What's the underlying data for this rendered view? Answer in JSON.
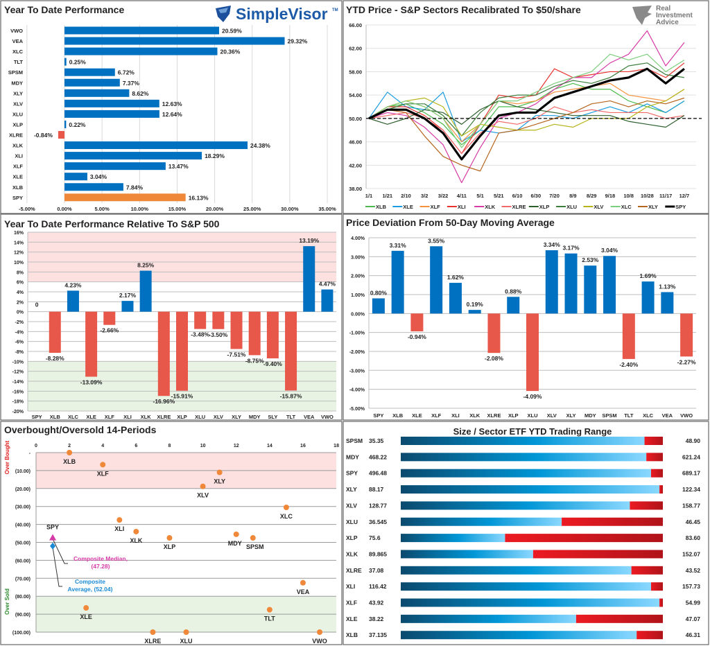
{
  "logos": {
    "simplevisor": "SimpleVisor",
    "simplevisor_tm": "TM",
    "ria": [
      "Real",
      "Investment",
      "Advice"
    ]
  },
  "colors": {
    "positive": "#0070c0",
    "negative": "#e8584a",
    "highlight": "#f0883a",
    "overbought_band": "#fde1e1",
    "oversold_band": "#e8f3e4",
    "median": "#d63aa6",
    "average": "#1a8ad4"
  },
  "chart_data": [
    {
      "type": "bar",
      "orientation": "horizontal",
      "title": "Year To Date Performance",
      "categories": [
        "VWO",
        "VEA",
        "XLC",
        "TLT",
        "SPSM",
        "MDY",
        "XLY",
        "XLV",
        "XLU",
        "XLP",
        "XLRE",
        "XLK",
        "XLI",
        "XLF",
        "XLE",
        "XLB",
        "SPY"
      ],
      "values": [
        20.59,
        29.32,
        20.36,
        0.25,
        6.72,
        7.37,
        8.62,
        12.63,
        12.64,
        0.22,
        -0.84,
        24.38,
        18.29,
        13.47,
        3.04,
        7.84,
        16.13
      ],
      "labels": [
        "20.59%",
        "29.32%",
        "20.36%",
        "0.25%",
        "6.72%",
        "7.37%",
        "8.62%",
        "12.63%",
        "12.64%",
        "0.22%",
        "-0.84%",
        "24.38%",
        "18.29%",
        "13.47%",
        "3.04%",
        "7.84%",
        "16.13%"
      ],
      "highlight": "SPY",
      "xlim": [
        -5,
        35
      ],
      "xticks": [
        "-5.00%",
        "0.00%",
        "5.00%",
        "10.00%",
        "15.00%",
        "20.00%",
        "25.00%",
        "30.00%",
        "35.00%"
      ],
      "grid": true
    },
    {
      "type": "line",
      "title": "YTD Price - S&P Sectors Recalibrated To $50/share",
      "x": [
        "1/1",
        "1/21",
        "2/10",
        "3/2",
        "3/22",
        "4/11",
        "5/1",
        "5/21",
        "6/10",
        "6/30",
        "7/20",
        "8/9",
        "8/29",
        "9/18",
        "10/8",
        "10/28",
        "11/17",
        "12/7"
      ],
      "ylim": [
        38,
        66
      ],
      "yticks": [
        "66.00",
        "62.00",
        "58.00",
        "54.00",
        "50.00",
        "46.00",
        "42.00",
        "38.00"
      ],
      "reference_line": 50,
      "legend": "bottom",
      "series": [
        {
          "name": "XLB",
          "color": "#4cbb4c",
          "values": [
            50,
            52,
            52.5,
            51,
            49,
            45.5,
            48,
            52,
            52,
            53,
            55,
            56,
            55,
            55,
            53,
            52,
            51,
            53
          ]
        },
        {
          "name": "XLE",
          "color": "#1a9be0",
          "values": [
            50,
            54.5,
            52,
            51.5,
            54.5,
            46,
            48,
            47.5,
            48,
            50.5,
            50.5,
            50,
            51,
            52,
            51,
            52.5,
            51,
            53
          ]
        },
        {
          "name": "XLF",
          "color": "#f5923e",
          "values": [
            50,
            52,
            53,
            52,
            50,
            46,
            49,
            53,
            52.5,
            53,
            54.5,
            55,
            55.5,
            56,
            54,
            53.5,
            53,
            55
          ]
        },
        {
          "name": "XLI",
          "color": "#e8322e",
          "values": [
            50,
            52,
            52,
            50.5,
            48,
            44,
            49,
            54,
            53.5,
            54,
            58.5,
            57,
            57.5,
            58,
            58,
            58.5,
            57,
            59.5
          ]
        },
        {
          "name": "XLK",
          "color": "#d63aa6",
          "values": [
            50,
            51,
            50.5,
            48.5,
            45.5,
            39,
            45,
            50,
            51,
            52.5,
            55,
            57,
            57,
            59.5,
            61,
            65,
            59,
            63
          ]
        },
        {
          "name": "XLRE",
          "color": "#f06a6a",
          "values": [
            50,
            50.5,
            51,
            50,
            48,
            44,
            47.5,
            49.5,
            49,
            50,
            52,
            51,
            51.5,
            51,
            51,
            51,
            50,
            50.5
          ]
        },
        {
          "name": "XLP",
          "color": "#2d5f2d",
          "values": [
            50,
            49,
            50,
            51.5,
            51,
            49,
            51.5,
            53,
            52,
            51.5,
            51,
            50.5,
            50.5,
            50.5,
            49.5,
            49,
            48.5,
            50.5
          ]
        },
        {
          "name": "XLU",
          "color": "#3b7d3b",
          "values": [
            50,
            51.5,
            52.5,
            52.5,
            50.5,
            47,
            51,
            53.5,
            54,
            54,
            55.5,
            56.5,
            56,
            57,
            59,
            59.5,
            57.5,
            57
          ]
        },
        {
          "name": "XLV",
          "color": "#b5b51a",
          "values": [
            50,
            52,
            53,
            53.5,
            52,
            47,
            49,
            48.5,
            48,
            48,
            49,
            48.5,
            50,
            50,
            50,
            52,
            53,
            55
          ]
        },
        {
          "name": "XLC",
          "color": "#7ccf7c",
          "values": [
            50,
            52,
            53,
            52,
            50,
            45,
            49,
            53,
            53,
            54.5,
            56,
            57,
            58,
            61,
            60,
            61,
            58,
            60
          ]
        },
        {
          "name": "XLY",
          "color": "#b5651d",
          "values": [
            50,
            51.5,
            51,
            47,
            43.5,
            42,
            41,
            47.5,
            48,
            49,
            50,
            51,
            52.5,
            53,
            52,
            53,
            52.5,
            53.5
          ]
        },
        {
          "name": "SPY",
          "color": "#000000",
          "values": [
            50,
            51.5,
            51.5,
            50,
            47.5,
            43,
            47,
            50.5,
            51,
            51,
            53.5,
            54.5,
            55.5,
            56.5,
            57,
            58.5,
            56,
            58.5
          ]
        }
      ]
    },
    {
      "type": "bar",
      "title": "Year To Date Performance Relative To S&P 500",
      "categories": [
        "SPY",
        "XLB",
        "XLC",
        "XLE",
        "XLF",
        "XLI",
        "XLK",
        "XLRE",
        "XLP",
        "XLU",
        "XLV",
        "XLY",
        "MDY",
        "SLY",
        "TLT",
        "VEA",
        "VWO"
      ],
      "values": [
        0,
        -8.28,
        4.23,
        -13.09,
        -2.66,
        2.17,
        8.25,
        -16.96,
        -15.91,
        -3.48,
        -3.5,
        -7.51,
        -8.75,
        -9.4,
        -15.87,
        13.19,
        4.47
      ],
      "labels": [
        "0",
        "-8.28%",
        "4.23%",
        "-13.09%",
        "-2.66%",
        "2.17%",
        "8.25%",
        "-16.96%",
        "-15.91%",
        "-3.48%",
        "-3.50%",
        "-7.51%",
        "-8.75%",
        "-9.40%",
        "-15.87%",
        "13.19%",
        "4.47%"
      ],
      "ylim": [
        -20,
        16
      ],
      "yticks": [
        "16%",
        "14%",
        "12%",
        "10%",
        "8%",
        "6%",
        "4%",
        "2%",
        "0%",
        "-2%",
        "-4%",
        "-6%",
        "-8%",
        "-10%",
        "-12%",
        "-14%",
        "-16%",
        "-18%",
        "-20%"
      ],
      "bands": {
        "overbought": [
          6,
          16
        ],
        "oversold": [
          -20,
          -10
        ]
      },
      "grid": true
    },
    {
      "type": "bar",
      "title": "Price Deviation From 50-Day Moving Average",
      "categories": [
        "SPY",
        "XLB",
        "XLE",
        "XLF",
        "XLI",
        "XLK",
        "XLRE",
        "XLP",
        "XLU",
        "XLV",
        "XLY",
        "MDY",
        "SPSM",
        "TLT",
        "XLC",
        "VEA",
        "VWO"
      ],
      "values": [
        0.8,
        3.31,
        -0.94,
        3.55,
        1.62,
        0.19,
        -2.08,
        0.88,
        -4.09,
        3.34,
        3.17,
        2.53,
        3.04,
        -2.4,
        1.69,
        1.13,
        -2.27
      ],
      "labels": [
        "0.80%",
        "3.31%",
        "-0.94%",
        "3.55%",
        "1.62%",
        "0.19%",
        "-2.08%",
        "0.88%",
        "-4.09%",
        "3.34%",
        "3.17%",
        "2.53%",
        "3.04%",
        "-2.40%",
        "1.69%",
        "1.13%",
        "-2.27%"
      ],
      "ylim": [
        -5,
        4
      ],
      "yticks": [
        "4.00%",
        "3.00%",
        "2.00%",
        "1.00%",
        "0.00%",
        "-1.00%",
        "-2.00%",
        "-3.00%",
        "-4.00%",
        "-5.00%"
      ],
      "grid": true
    },
    {
      "type": "scatter",
      "title": "Overbought/Oversold 14-Periods",
      "xlim": [
        0,
        18
      ],
      "xticks": [
        "0",
        "2",
        "4",
        "6",
        "8",
        "10",
        "12",
        "14",
        "16",
        "18"
      ],
      "ylim": [
        -100,
        0
      ],
      "yticks": [
        "-",
        "(10.00)",
        "(20.00)",
        "(30.00)",
        "(40.00)",
        "(50.00)",
        "(60.00)",
        "(70.00)",
        "(80.00)",
        "(90.00)",
        "(100.00)"
      ],
      "band_labels": {
        "overbought": "Over Bought",
        "oversold": "Over Sold"
      },
      "bands": {
        "overbought": [
          -20,
          0
        ],
        "oversold": [
          -100,
          -80
        ]
      },
      "points": [
        {
          "label": "XLB",
          "x": 2,
          "y": 0
        },
        {
          "label": "XLF",
          "x": 4,
          "y": -6.7
        },
        {
          "label": "XLY",
          "x": 11,
          "y": -11
        },
        {
          "label": "XLV",
          "x": 10,
          "y": -18.8
        },
        {
          "label": "XLC",
          "x": 15,
          "y": -30.5
        },
        {
          "label": "XLI",
          "x": 5,
          "y": -37.5
        },
        {
          "label": "XLK",
          "x": 6,
          "y": -44
        },
        {
          "label": "XLP",
          "x": 8,
          "y": -47.5
        },
        {
          "label": "MDY",
          "x": 12,
          "y": -45.5
        },
        {
          "label": "SPSM",
          "x": 13,
          "y": -47.5
        },
        {
          "label": "VEA",
          "x": 16,
          "y": -72.5
        },
        {
          "label": "XLE",
          "x": 3,
          "y": -86.5
        },
        {
          "label": "TLT",
          "x": 14,
          "y": -87.5
        },
        {
          "label": "XLRE",
          "x": 7,
          "y": -100
        },
        {
          "label": "XLU",
          "x": 9,
          "y": -100
        },
        {
          "label": "VWO",
          "x": 17,
          "y": -100
        }
      ],
      "spy": {
        "label": "SPY",
        "x": 1
      },
      "composite_median": {
        "lines": [
          "Composite Median,",
          "(47.28)"
        ],
        "x": 1,
        "y": -47.28
      },
      "composite_average": {
        "lines": [
          "Composite",
          "Average,  (52.04)"
        ],
        "x": 1,
        "y": -52.04
      }
    },
    {
      "type": "table",
      "title": "Size / Sector ETF YTD Trading Range",
      "rows": [
        {
          "ticker": "SPSM",
          "low": "35.35",
          "high": "48.90",
          "position": 0.93
        },
        {
          "ticker": "MDY",
          "low": "468.22",
          "high": "621.24",
          "position": 0.937
        },
        {
          "ticker": "SPY",
          "low": "496.48",
          "high": "689.17",
          "position": 0.955
        },
        {
          "ticker": "XLY",
          "low": "88.17",
          "high": "122.34",
          "position": 0.987
        },
        {
          "ticker": "XLV",
          "low": "128.77",
          "high": "158.77",
          "position": 0.874
        },
        {
          "ticker": "XLU",
          "low": "36.545",
          "high": "46.45",
          "position": 0.614
        },
        {
          "ticker": "XLP",
          "low": "75.6",
          "high": "83.60",
          "position": 0.398
        },
        {
          "ticker": "XLK",
          "low": "89.865",
          "high": "152.07",
          "position": 0.505
        },
        {
          "ticker": "XLRE",
          "low": "37.08",
          "high": "43.52",
          "position": 0.88
        },
        {
          "ticker": "XLI",
          "low": "116.42",
          "high": "157.73",
          "position": 0.955
        },
        {
          "ticker": "XLF",
          "low": "43.92",
          "high": "54.99",
          "position": 0.987
        },
        {
          "ticker": "XLE",
          "low": "38.22",
          "high": "47.07",
          "position": 0.669
        },
        {
          "ticker": "XLB",
          "low": "37.135",
          "high": "46.31",
          "position": 0.9
        }
      ]
    }
  ]
}
